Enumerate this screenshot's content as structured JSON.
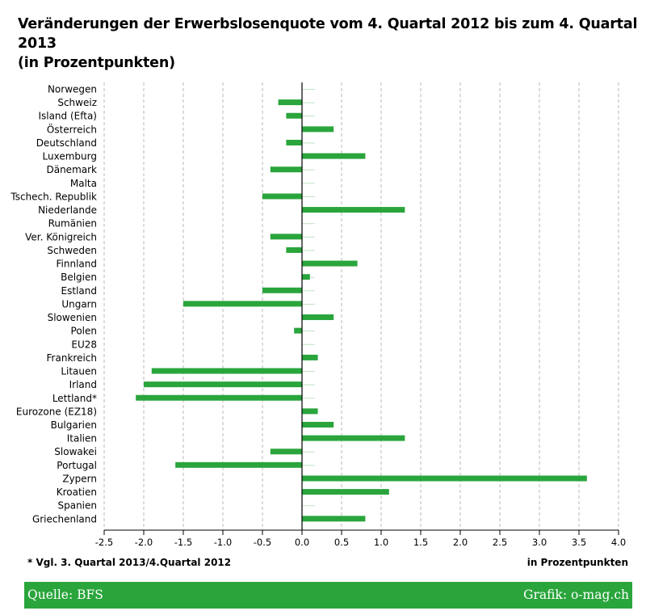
{
  "title_line1": "Veränderungen der Erwerbslosenquote vom 4. Quartal 2012 bis zum 4. Quartal 2013",
  "title_line2": "(in Prozentpunkten)",
  "footnote": "* Vgl. 3. Quartal 2013/4.Quartal 2012",
  "unit_note": "in Prozentpunkten",
  "source": "Quelle: BFS",
  "credit": "Grafik: o-mag.ch",
  "colors": {
    "bar": "#2aa53c",
    "footer": "#2aa53c",
    "grid": "#b8b8b8"
  },
  "chart_data": {
    "type": "bar",
    "orientation": "horizontal",
    "categories": [
      "Norwegen",
      "Schweiz",
      "Island (Efta)",
      "Österreich",
      "Deutschland",
      "Luxemburg",
      "Dänemark",
      "Malta",
      "Tschech. Republik",
      "Niederlande",
      "Rumänien",
      "Ver. Königreich",
      "Schweden",
      "Finnland",
      "Belgien",
      "Estland",
      "Ungarn",
      "Slowenien",
      "Polen",
      "EU28",
      "Frankreich",
      "Litauen",
      "Irland",
      "Lettland*",
      "Eurozone (EZ18)",
      "Bulgarien",
      "Italien",
      "Slowakei",
      "Portugal",
      "Zypern",
      "Kroatien",
      "Spanien",
      "Griechenland"
    ],
    "values": [
      0.0,
      -0.3,
      -0.2,
      0.4,
      -0.2,
      0.8,
      -0.4,
      0.0,
      -0.5,
      1.3,
      0.0,
      -0.4,
      -0.2,
      0.7,
      0.1,
      -0.5,
      -1.5,
      0.4,
      -0.1,
      0.0,
      0.2,
      -1.9,
      -2.0,
      -2.1,
      0.2,
      0.4,
      1.3,
      -0.4,
      -1.6,
      3.6,
      1.1,
      0.0,
      0.8
    ],
    "xlim": [
      -2.5,
      4.0
    ],
    "xticks": [
      "-2.5",
      "-2.0",
      "-1.5",
      "-1.0",
      "-0.5",
      "0.0",
      "0.5",
      "1.0",
      "1.5",
      "2.0",
      "2.5",
      "3.0",
      "3.5",
      "4.0"
    ],
    "grid": true,
    "legend": "none"
  }
}
